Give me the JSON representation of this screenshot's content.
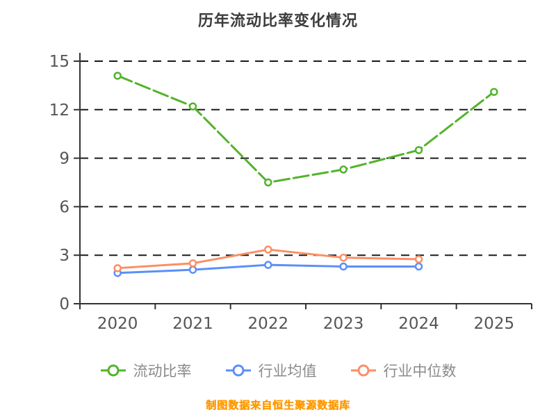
{
  "title": "历年流动比率变化情况",
  "footer": "制图数据来自恒生聚源数据库",
  "chart_data": {
    "type": "line",
    "categories": [
      "2020",
      "2021",
      "2022",
      "2023",
      "2024",
      "2025"
    ],
    "series": [
      {
        "name": "流动比率",
        "color": "#52b42a",
        "dashed": true,
        "values": [
          14.1,
          12.2,
          7.5,
          8.3,
          9.5,
          13.1
        ]
      },
      {
        "name": "行业均值",
        "color": "#5b8ff9",
        "dashed": false,
        "values": [
          1.9,
          2.1,
          2.4,
          2.3,
          2.3,
          null
        ]
      },
      {
        "name": "行业中位数",
        "color": "#fa8f64",
        "dashed": false,
        "values": [
          2.2,
          2.5,
          3.35,
          2.85,
          2.75,
          null
        ]
      }
    ],
    "ylim": [
      0,
      15
    ],
    "yticks": [
      0,
      3,
      6,
      9,
      12,
      15
    ],
    "grid": "dashed-horizontal",
    "legend_position": "bottom",
    "xlabel": "",
    "ylabel": ""
  }
}
